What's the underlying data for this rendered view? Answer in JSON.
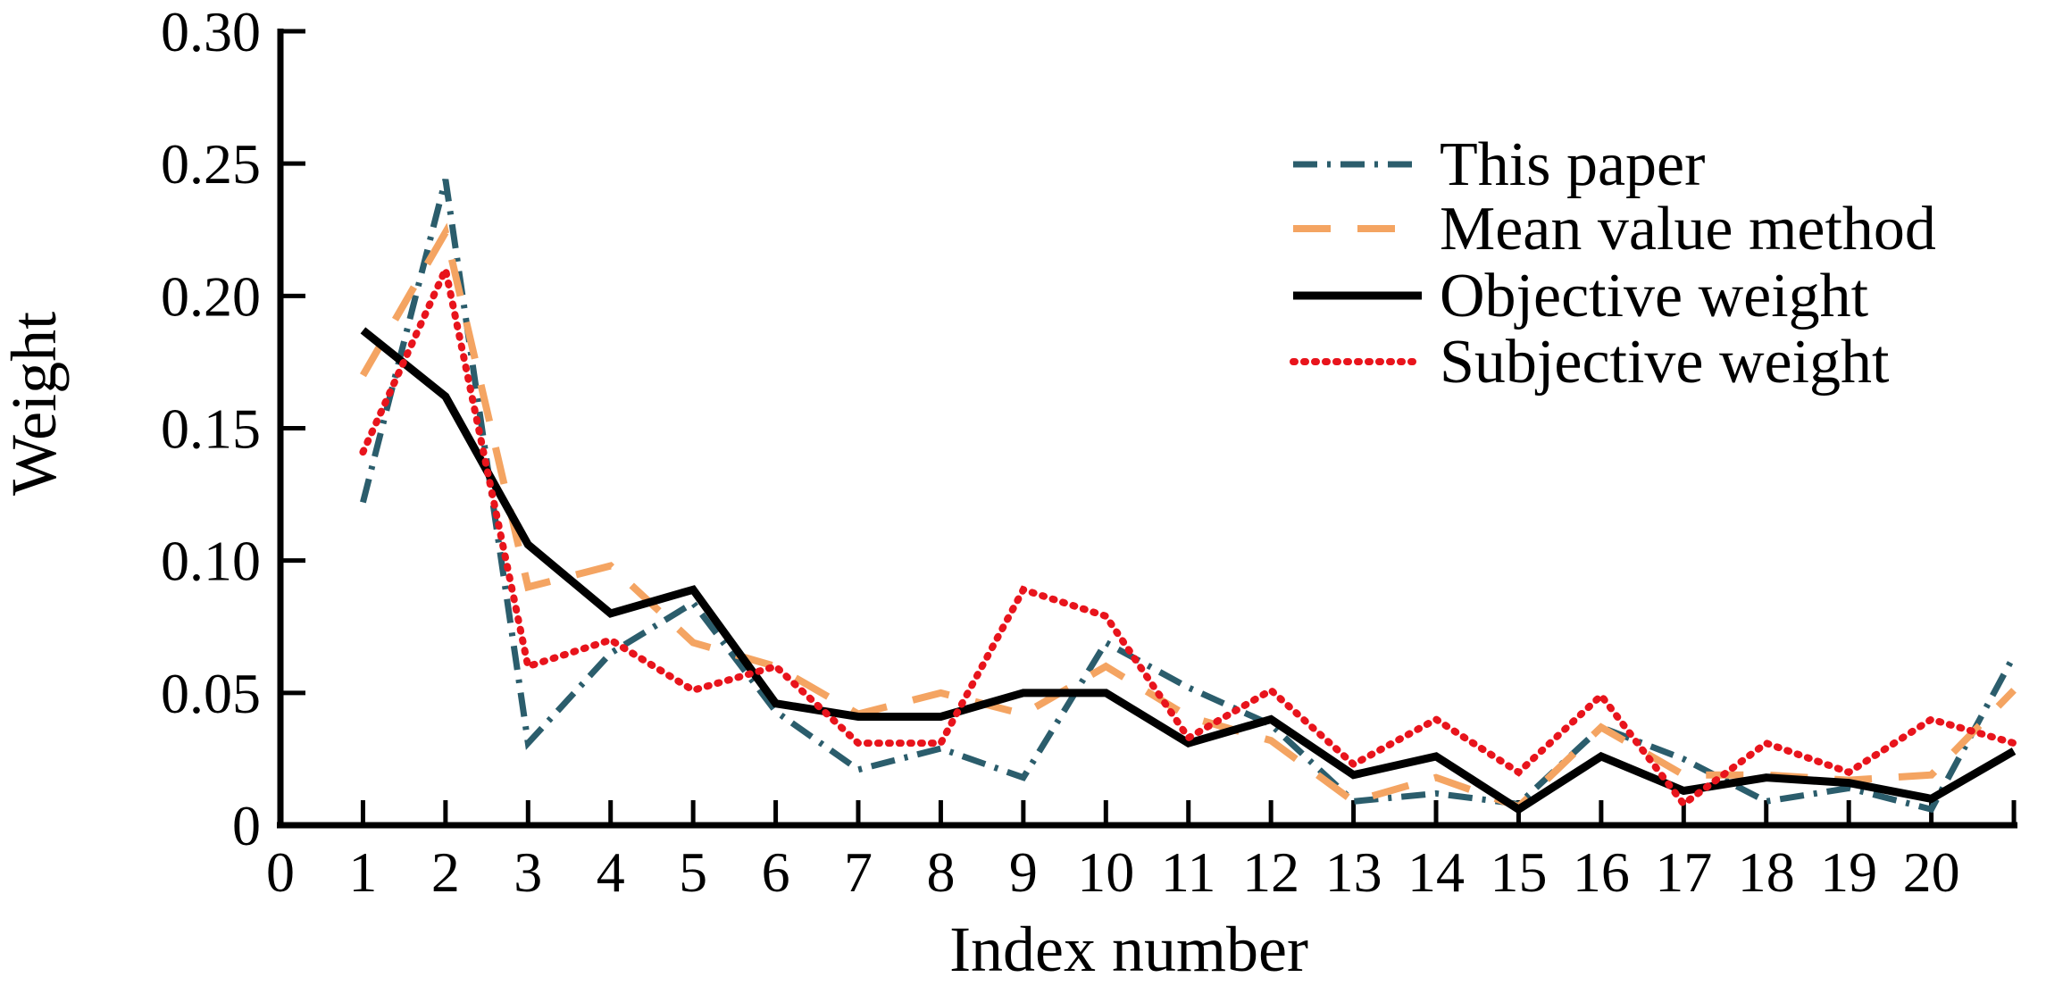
{
  "chart_data": {
    "type": "line",
    "title": "",
    "xlabel": "Index number",
    "ylabel": "Weight",
    "x": [
      1,
      2,
      3,
      4,
      5,
      6,
      7,
      8,
      9,
      10,
      11,
      12,
      13,
      14,
      15,
      16,
      17,
      18,
      19,
      20,
      21
    ],
    "xlim": [
      0,
      21
    ],
    "ylim": [
      0,
      0.3
    ],
    "x_tick_labels": [
      "0",
      "1",
      "2",
      "3",
      "4",
      "5",
      "6",
      "7",
      "8",
      "9",
      "10",
      "11",
      "12",
      "13",
      "14",
      "15",
      "16",
      "17",
      "18",
      "19",
      "20"
    ],
    "y_ticks": [
      0,
      0.05,
      0.1,
      0.15,
      0.2,
      0.25,
      0.3
    ],
    "y_tick_labels": [
      "0",
      "0.05",
      "0.10",
      "0.15",
      "0.20",
      "0.25",
      "0.30"
    ],
    "grid": false,
    "legend_position": "upper right inside",
    "axis_color": "#000000",
    "series": [
      {
        "name": "This paper",
        "color": "#2b5d6c",
        "style": "dash-dot",
        "values": [
          0.122,
          0.244,
          0.031,
          0.065,
          0.084,
          0.043,
          0.021,
          0.029,
          0.018,
          0.069,
          0.052,
          0.038,
          0.009,
          0.012,
          0.008,
          0.037,
          0.025,
          0.009,
          0.014,
          0.006,
          0.064
        ]
      },
      {
        "name": "Mean value method",
        "color": "#f4a462",
        "style": "long-dash",
        "values": [
          0.17,
          0.224,
          0.09,
          0.098,
          0.069,
          0.06,
          0.042,
          0.05,
          0.042,
          0.06,
          0.041,
          0.032,
          0.009,
          0.018,
          0.007,
          0.037,
          0.019,
          0.019,
          0.017,
          0.019,
          0.051
        ]
      },
      {
        "name": "Objective weight",
        "color": "#000000",
        "style": "solid",
        "values": [
          0.187,
          0.162,
          0.106,
          0.08,
          0.089,
          0.046,
          0.041,
          0.041,
          0.05,
          0.05,
          0.031,
          0.04,
          0.019,
          0.026,
          0.006,
          0.026,
          0.013,
          0.018,
          0.016,
          0.01,
          0.028
        ]
      },
      {
        "name": "Subjective weight",
        "color": "#e8141c",
        "style": "dotted",
        "values": [
          0.141,
          0.21,
          0.06,
          0.07,
          0.051,
          0.06,
          0.031,
          0.031,
          0.089,
          0.079,
          0.033,
          0.051,
          0.023,
          0.04,
          0.02,
          0.049,
          0.008,
          0.031,
          0.02,
          0.04,
          0.031
        ]
      }
    ]
  }
}
